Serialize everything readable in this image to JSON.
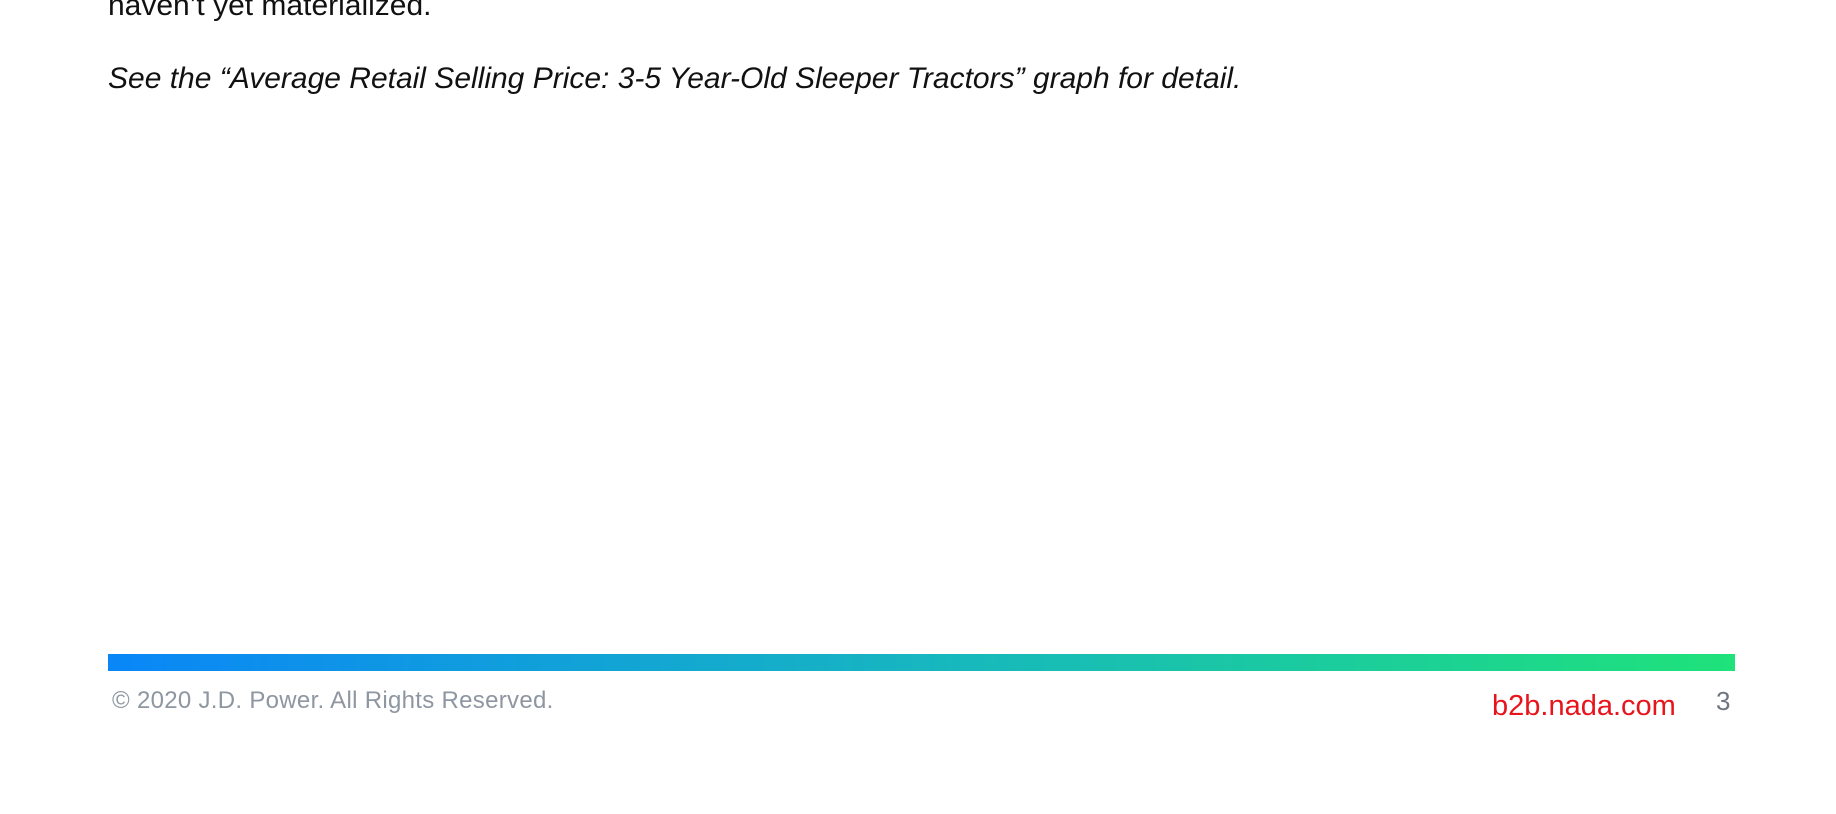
{
  "document": {
    "partial_line": "haven’t yet materialized.",
    "reference_note": "See the “Average Retail Selling Price: 3-5 Year-Old Sleeper Tractors” graph for detail."
  },
  "footer": {
    "copyright": "© 2020 J.D. Power. All Rights Reserved.",
    "site": "b2b.nada.com",
    "page_number": "3",
    "colors": {
      "bar_start": "#0a86f7",
      "bar_mid": "#17b6c0",
      "bar_end": "#1fe27a",
      "site_link": "#e8141c",
      "copyright_text": "#8e96a1"
    }
  }
}
